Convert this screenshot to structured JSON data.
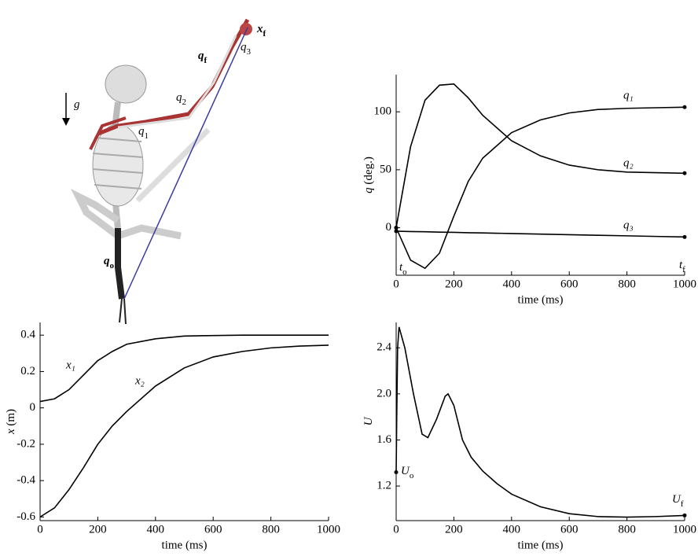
{
  "illustration": {
    "labels": [
      {
        "text": "x",
        "sub": "f"
      },
      {
        "text": "q",
        "sub": "f"
      },
      {
        "text": "q",
        "sub": "3"
      },
      {
        "text": "q",
        "sub": "2"
      },
      {
        "text": "q",
        "sub": "1"
      },
      {
        "text": "g"
      },
      {
        "text": "q",
        "sub": "o"
      }
    ]
  },
  "chart_data": [
    {
      "type": "line",
      "xlabel": "time (ms)",
      "ylabel": {
        "text": "q",
        "rest": " (deg.)"
      },
      "x": [
        0,
        50,
        100,
        150,
        200,
        250,
        300,
        400,
        500,
        600,
        700,
        800,
        900,
        1000
      ],
      "series": [
        {
          "name": "q₁",
          "color": "#000000",
          "values": [
            0,
            -28,
            -35,
            -22,
            10,
            40,
            60,
            82,
            93,
            99,
            102,
            103,
            103.5,
            104
          ]
        },
        {
          "name": "q₂",
          "color": "#000000",
          "values": [
            0,
            70,
            110,
            123,
            124,
            112,
            97,
            75,
            62,
            54,
            50,
            48,
            47.5,
            47
          ]
        },
        {
          "name": "q₃",
          "color": "#000000",
          "values": [
            -3,
            -3.3,
            -3.5,
            -3.8,
            -4,
            -4.3,
            -4.5,
            -5,
            -5.5,
            -6,
            -6.5,
            -7,
            -7.5,
            -8
          ]
        }
      ],
      "annotations": [
        {
          "text": "t",
          "sub": "o"
        },
        {
          "text": "t",
          "sub": "f"
        }
      ],
      "xlim": [
        0,
        1000
      ],
      "xticks": [
        0,
        200,
        400,
        600,
        800,
        1000
      ],
      "ylim": [
        -41,
        132
      ],
      "yticks": [
        0,
        50,
        100
      ]
    },
    {
      "type": "line",
      "xlabel": "time (ms)",
      "ylabel": {
        "text": "x",
        "rest": " (m)"
      },
      "x": [
        0,
        50,
        100,
        150,
        200,
        250,
        300,
        400,
        500,
        600,
        700,
        800,
        900,
        1000
      ],
      "series": [
        {
          "name": "x₁",
          "color": "#000000",
          "values": [
            0.035,
            0.05,
            0.1,
            0.18,
            0.26,
            0.31,
            0.35,
            0.38,
            0.395,
            0.398,
            0.4,
            0.4,
            0.4,
            0.4
          ]
        },
        {
          "name": "x₂",
          "color": "#000000",
          "values": [
            -0.6,
            -0.55,
            -0.45,
            -0.33,
            -0.2,
            -0.1,
            -0.02,
            0.12,
            0.22,
            0.28,
            0.31,
            0.33,
            0.34,
            0.345
          ]
        }
      ],
      "xlim": [
        0,
        1000
      ],
      "xticks": [
        0,
        200,
        400,
        600,
        800,
        1000
      ],
      "ylim": [
        -0.62,
        0.47
      ],
      "yticks": [
        -0.6,
        -0.4,
        -0.2,
        0,
        0.2,
        0.4
      ]
    },
    {
      "type": "line",
      "xlabel": "time (ms)",
      "ylabel": {
        "text": "U",
        "rest": ""
      },
      "x": [
        0,
        2,
        5,
        10,
        30,
        60,
        90,
        110,
        140,
        170,
        180,
        200,
        230,
        260,
        300,
        350,
        400,
        500,
        600,
        700,
        800,
        900,
        1000
      ],
      "series": [
        {
          "name": null,
          "color": "#000000",
          "values": [
            1.32,
            1.8,
            2.4,
            2.58,
            2.4,
            2.0,
            1.65,
            1.62,
            1.78,
            1.98,
            2.0,
            1.9,
            1.6,
            1.45,
            1.33,
            1.22,
            1.13,
            1.02,
            0.96,
            0.935,
            0.93,
            0.935,
            0.945
          ]
        }
      ],
      "annotations": [
        {
          "text": "U",
          "sub": "o"
        },
        {
          "text": "U",
          "sub": "f"
        }
      ],
      "xlim": [
        0,
        1000
      ],
      "xticks": [
        0,
        200,
        400,
        600,
        800,
        1000
      ],
      "ylim": [
        0.9,
        2.62
      ],
      "yticks": [
        {
          "value": 1.2,
          "label": "1.2"
        },
        {
          "value": 1.6,
          "label": "1.6"
        },
        {
          "value": 2,
          "label": "2.0"
        },
        {
          "value": 2.4,
          "label": "2.4"
        }
      ]
    }
  ]
}
